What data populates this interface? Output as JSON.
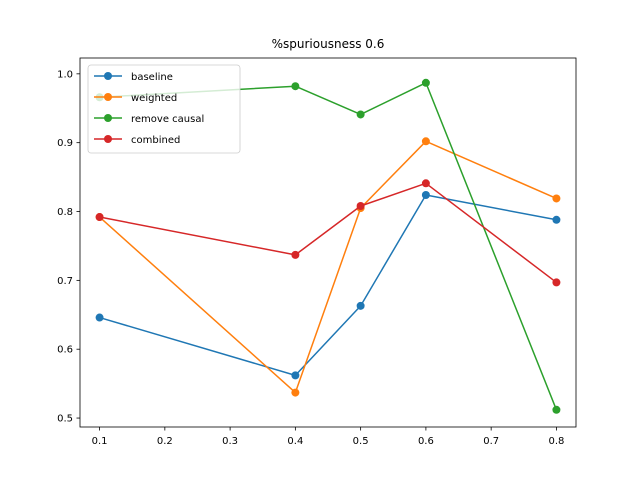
{
  "chart_data": {
    "type": "line",
    "title": "%spuriousness 0.6",
    "xlabel": "",
    "ylabel": "",
    "x": [
      0.1,
      0.4,
      0.5,
      0.6,
      0.8
    ],
    "xlim": [
      0.07,
      0.83
    ],
    "ylim": [
      0.487,
      1.023
    ],
    "xticks": [
      0.1,
      0.2,
      0.3,
      0.4,
      0.5,
      0.6,
      0.7,
      0.8
    ],
    "xtick_labels": [
      "0.1",
      "0.2",
      "0.3",
      "0.4",
      "0.5",
      "0.6",
      "0.7",
      "0.8"
    ],
    "yticks": [
      0.5,
      0.6,
      0.7,
      0.8,
      0.9,
      1.0
    ],
    "ytick_labels": [
      "0.5",
      "0.6",
      "0.7",
      "0.8",
      "0.9",
      "1.0"
    ],
    "grid": false,
    "legend_position": "upper-left",
    "series": [
      {
        "name": "baseline",
        "color": "#1f77b4",
        "values": [
          0.646,
          0.562,
          0.663,
          0.824,
          0.788
        ]
      },
      {
        "name": "weighted",
        "color": "#ff7f0e",
        "values": [
          0.792,
          0.537,
          0.805,
          0.902,
          0.819
        ]
      },
      {
        "name": "remove causal",
        "color": "#2ca02c",
        "values": [
          0.966,
          0.982,
          0.941,
          0.987,
          0.512
        ]
      },
      {
        "name": "combined",
        "color": "#d62728",
        "values": [
          0.792,
          0.737,
          0.808,
          0.841,
          0.697
        ]
      }
    ]
  }
}
